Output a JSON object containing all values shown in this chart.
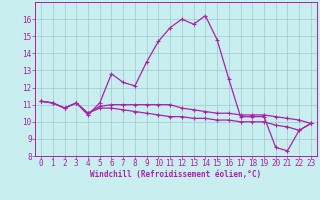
{
  "xlabel": "Windchill (Refroidissement éolien,°C)",
  "xlim": [
    -0.5,
    23.5
  ],
  "ylim": [
    8,
    17
  ],
  "yticks": [
    8,
    9,
    10,
    11,
    12,
    13,
    14,
    15,
    16
  ],
  "xticks": [
    0,
    1,
    2,
    3,
    4,
    5,
    6,
    7,
    8,
    9,
    10,
    11,
    12,
    13,
    14,
    15,
    16,
    17,
    18,
    19,
    20,
    21,
    22,
    23
  ],
  "bg_color": "#c8eef0",
  "grid_color": "#a0c8cc",
  "line_color": "#aa22aa",
  "lines": [
    {
      "x": [
        0,
        1,
        2,
        3,
        4,
        5,
        6,
        7,
        8,
        9,
        10,
        11,
        12,
        13,
        14,
        15,
        16,
        17,
        18,
        19,
        20,
        21,
        22,
        23
      ],
      "y": [
        11.2,
        11.1,
        10.8,
        11.1,
        10.4,
        11.1,
        12.8,
        12.3,
        12.1,
        13.5,
        14.7,
        15.5,
        16.0,
        15.7,
        16.2,
        14.8,
        12.5,
        10.3,
        10.3,
        10.3,
        8.5,
        8.3,
        9.5,
        9.9
      ]
    },
    {
      "x": [
        0,
        1,
        2,
        3,
        4,
        5,
        6,
        7,
        8,
        9,
        10,
        11,
        12,
        13,
        14,
        15,
        16,
        17,
        18,
        19,
        20,
        21,
        22,
        23
      ],
      "y": [
        11.2,
        11.1,
        10.8,
        11.1,
        10.5,
        10.9,
        11.0,
        11.0,
        11.0,
        11.0,
        11.0,
        11.0,
        10.8,
        10.7,
        10.6,
        10.5,
        10.5,
        10.4,
        10.4,
        10.4,
        10.3,
        10.2,
        10.1,
        9.9
      ]
    },
    {
      "x": [
        0,
        1,
        2,
        3,
        4,
        5,
        6,
        7,
        8,
        9,
        10,
        11,
        12,
        13,
        14,
        15,
        16,
        17,
        18,
        19,
        20,
        21,
        22,
        23
      ],
      "y": [
        11.2,
        11.1,
        10.8,
        11.1,
        10.5,
        10.8,
        10.8,
        10.7,
        10.6,
        10.5,
        10.4,
        10.3,
        10.3,
        10.2,
        10.2,
        10.1,
        10.1,
        10.0,
        10.0,
        10.0,
        9.8,
        9.7,
        9.5,
        9.9
      ]
    }
  ],
  "tick_fontsize": 5.5,
  "xlabel_fontsize": 5.5
}
